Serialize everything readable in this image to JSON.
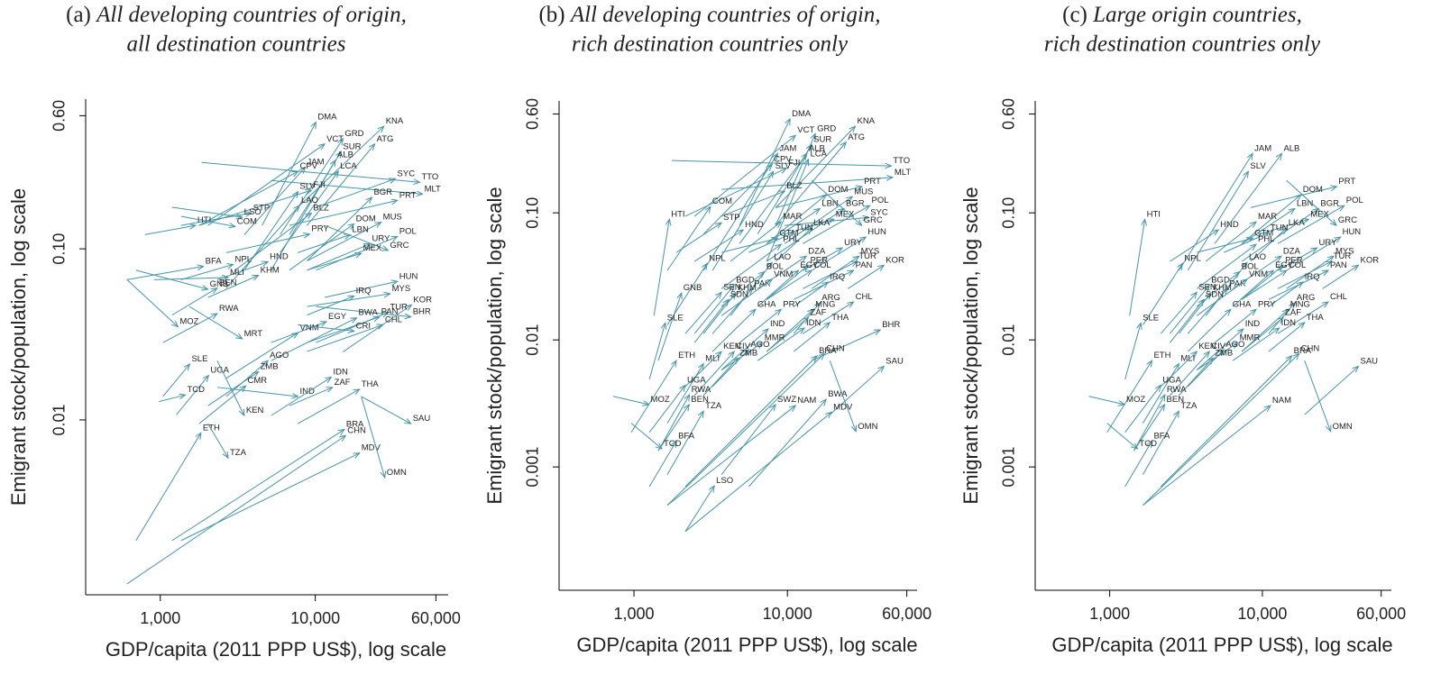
{
  "chart_data": [
    {
      "type": "arrow",
      "panel": "(a)",
      "title": [
        "All developing countries of origin,",
        "all destination countries"
      ],
      "x_label": "GDP/capita (2011 PPP US$), log scale",
      "y_label": "Emigrant stock/population, log scale",
      "xscale": "log",
      "yscale": "log",
      "color": "#4596a8",
      "xlim": [
        330,
        72000
      ],
      "ylim": [
        0.00095,
        0.75
      ],
      "xticks": [
        {
          "value": 1000,
          "label": "1,000"
        },
        {
          "value": 10000,
          "label": "10,000"
        },
        {
          "value": 60000,
          "label": "60,000"
        }
      ],
      "yticks": [
        0.01,
        {
          "value": 0.1,
          "label": "0.10"
        },
        {
          "value": 0.6,
          "label": "0.60"
        }
      ],
      "labels": [
        "DMA",
        "VCT",
        "GRD",
        "KNA",
        "SUR",
        "ATG",
        "JAM",
        "ALB",
        "CPV",
        "LCA",
        "SYC",
        "TTO",
        "MLT",
        "PRT",
        "BGR",
        "SLV",
        "FJI",
        "LAO",
        "BLZ",
        "STP",
        "LSO",
        "HTI",
        "COM",
        "PRY",
        "DOM",
        "MUS",
        "LBN",
        "POL",
        "URY",
        "GRC",
        "MEX",
        "NPL",
        "BFA",
        "HND",
        "MLI",
        "KHM",
        "GNB",
        "BEN",
        "HUN",
        "MYS",
        "IRQ",
        "KOR",
        "TUR",
        "BHR",
        "PAN",
        "BWA",
        "CHL",
        "EGY",
        "MOZ",
        "RWA",
        "MRT",
        "VNM",
        "CRI",
        "SLE",
        "AGO",
        "ZMB",
        "UGA",
        "CMR",
        "TCD",
        "IND",
        "KEN",
        "THA",
        "IDN",
        "ZAF",
        "SAU",
        "ETH",
        "TZA",
        "BRA",
        "CHN",
        "MDV",
        "OMN"
      ],
      "x_start": [
        4540,
        2030,
        5930,
        7700,
        6800,
        8840,
        3480,
        5190,
        1780,
        5930,
        10100,
        1850,
        5190,
        6800,
        8840,
        3480,
        1780,
        2660,
        3040,
        1360,
        1190,
        795,
        1360,
        2660,
        6800,
        8840,
        7700,
        10100,
        8840,
        11500,
        8840,
        1360,
        610,
        2330,
        912,
        2030,
        697,
        1190,
        11500,
        8840,
        8840,
        15100,
        10100,
        10100,
        8840,
        5190,
        8840,
        5190,
        610,
        1040,
        1540,
        2660,
        7700,
        1040,
        2660,
        2030,
        1270,
        1780,
        980,
        2330,
        2330,
        7700,
        5190,
        6800,
        19800,
        697,
        2030,
        1190,
        610,
        1360,
        19800
      ],
      "y_start": [
        0.137,
        0.137,
        0.121,
        0.175,
        0.121,
        0.137,
        0.121,
        0.075,
        0.137,
        0.095,
        0.175,
        0.32,
        0.251,
        0.137,
        0.085,
        0.075,
        0.137,
        0.059,
        0.075,
        0.137,
        0.175,
        0.121,
        0.155,
        0.095,
        0.075,
        0.085,
        0.095,
        0.075,
        0.075,
        0.137,
        0.075,
        0.066,
        0.066,
        0.066,
        0.066,
        0.052,
        0.075,
        0.041,
        0.052,
        0.046,
        0.041,
        0.025,
        0.0283,
        0.046,
        0.0283,
        0.0222,
        0.0251,
        0.0283,
        0.066,
        0.0283,
        0.046,
        0.0175,
        0.036,
        0.0137,
        0.0137,
        0.0121,
        0.0107,
        0.0095,
        0.0128,
        0.0155,
        0.0222,
        0.0095,
        0.0106,
        0.0121,
        0.0137,
        0.00197,
        0.0095,
        0.00197,
        0.0011,
        0.00197,
        0.0137
      ],
      "x": [
        10100,
        11500,
        15100,
        27700,
        14700,
        24200,
        8620,
        13500,
        7740,
        14100,
        32900,
        47200,
        49200,
        33900,
        23200,
        7740,
        9450,
        7900,
        9450,
        3870,
        3380,
        1690,
        3040,
        9200,
        17800,
        26600,
        16800,
        33900,
        22600,
        29500,
        19800,
        2950,
        1900,
        4950,
        2740,
        4300,
        2030,
        2330,
        33900,
        30400,
        17800,
        41800,
        29500,
        41400,
        25900,
        18500,
        27400,
        11800,
        1300,
        2330,
        3380,
        7740,
        17800,
        1550,
        4950,
        4300,
        2050,
        3560,
        1450,
        7740,
        3480,
        19300,
        12700,
        12900,
        41400,
        1830,
        2740,
        15400,
        15700,
        19300,
        28100
      ],
      "y": [
        0.55,
        0.41,
        0.44,
        0.52,
        0.37,
        0.41,
        0.3,
        0.33,
        0.284,
        0.284,
        0.257,
        0.245,
        0.209,
        0.192,
        0.2,
        0.216,
        0.22,
        0.179,
        0.162,
        0.162,
        0.153,
        0.137,
        0.135,
        0.122,
        0.14,
        0.143,
        0.121,
        0.118,
        0.107,
        0.098,
        0.094,
        0.081,
        0.079,
        0.084,
        0.068,
        0.07,
        0.058,
        0.059,
        0.0645,
        0.0546,
        0.053,
        0.047,
        0.0425,
        0.04,
        0.04,
        0.0395,
        0.036,
        0.0375,
        0.035,
        0.0418,
        0.0298,
        0.0323,
        0.033,
        0.0212,
        0.0222,
        0.0191,
        0.0182,
        0.0158,
        0.014,
        0.0137,
        0.0106,
        0.0151,
        0.0178,
        0.0155,
        0.0095,
        0.0084,
        0.006,
        0.0088,
        0.0081,
        0.0064,
        0.0046
      ]
    },
    {
      "type": "arrow",
      "panel": "(b)",
      "title": [
        "All developing countries of origin,",
        "rich destination countries only"
      ],
      "x_label": "GDP/capita (2011 PPP US$), log scale",
      "y_label": "Emigrant stock/population, log scale",
      "xscale": "log",
      "yscale": "log",
      "color": "#4596a8",
      "xlim": [
        325,
        70000
      ],
      "ylim": [
        0.000107,
        0.76
      ],
      "xticks": [
        {
          "value": 1000,
          "label": "1,000"
        },
        {
          "value": 10000,
          "label": "10,000"
        },
        {
          "value": 60000,
          "label": "60,000"
        }
      ],
      "yticks": [
        0.001,
        0.01,
        {
          "value": 0.1,
          "label": "0.10"
        },
        {
          "value": 0.6,
          "label": "0.60"
        }
      ],
      "labels": [
        "DMA",
        "VCT",
        "GRD",
        "KNA",
        "SUR",
        "ATG",
        "TTO",
        "MLT",
        "JAM",
        "ALB",
        "CPV",
        "LCA",
        "SLV",
        "FJI",
        "BLZ",
        "PRT",
        "DOM",
        "MUS",
        "POL",
        "SYC",
        "COM",
        "HTI",
        "STP",
        "LBN",
        "BGR",
        "MEX",
        "GRC",
        "HND",
        "MAR",
        "LKA",
        "GTM",
        "TUN",
        "HUN",
        "URY",
        "NPL",
        "PHL",
        "DZA",
        "MYS",
        "LAO",
        "PER",
        "TUR",
        "KOR",
        "PAN",
        "GNB",
        "SLE",
        "BGD",
        "BOL",
        "EGY",
        "COL",
        "IRQ",
        "PAK",
        "SEN",
        "VNM",
        "KHM",
        "SDN",
        "GHA",
        "PRY",
        "ARG",
        "CHL",
        "MNG",
        "ZAF",
        "IDN",
        "THA",
        "IND",
        "MMR",
        "BHR",
        "ETH",
        "MLI",
        "KEN",
        "CIV",
        "AGO",
        "ZMB",
        "CHN",
        "BRA",
        "SAU",
        "UGA",
        "RWA",
        "MOZ",
        "BEN",
        "TZA",
        "SWZ",
        "NAM",
        "BWA",
        "MDV",
        "OMN",
        "BFA",
        "TCD",
        "LSO"
      ],
      "x_start": [
        4880,
        2480,
        8390,
        8390,
        6400,
        8390,
        1760,
        3720,
        2840,
        4880,
        2840,
        7330,
        3250,
        2160,
        3720,
        8390,
        7330,
        9600,
        12600,
        9600,
        1650,
        1350,
        1890,
        7330,
        7330,
        9600,
        14400,
        2480,
        4260,
        8390,
        3720,
        5600,
        14400,
        12600,
        1650,
        3720,
        6400,
        14400,
        4260,
        7330,
        12600,
        24800,
        11000,
        1440,
        1260,
        2480,
        3720,
        6400,
        7330,
        11000,
        3250,
        2160,
        3720,
        2840,
        2480,
        3250,
        4880,
        11000,
        12600,
        7330,
        7330,
        6400,
        11000,
        3720,
        3720,
        14400,
        960,
        1650,
        2160,
        2480,
        3250,
        2840,
        1650,
        2160,
        18900,
        1260,
        1440,
        730,
        1440,
        1650,
        3720,
        1650,
        5600,
        2160,
        18900,
        1260,
        960,
        2160
      ],
      "y_start": [
        0.0796,
        0.094,
        0.0796,
        0.11,
        0.068,
        0.0796,
        0.258,
        0.153,
        0.0352,
        0.0573,
        0.068,
        0.0415,
        0.0352,
        0.094,
        0.094,
        0.11,
        0.0573,
        0.0573,
        0.0573,
        0.0796,
        0.0352,
        0.0155,
        0.0488,
        0.0573,
        0.0415,
        0.068,
        0.18,
        0.0415,
        0.0415,
        0.0415,
        0.0488,
        0.0488,
        0.0352,
        0.0352,
        0.0131,
        0.0253,
        0.0253,
        0.0253,
        0.0155,
        0.0208,
        0.0253,
        0.0253,
        0.0208,
        0.00687,
        0.0049,
        0.0112,
        0.0183,
        0.0183,
        0.0208,
        0.0183,
        0.0112,
        0.0112,
        0.0155,
        0.0112,
        0.0095,
        0.0081,
        0.0095,
        0.0112,
        0.0112,
        0.0081,
        0.0081,
        0.00687,
        0.0081,
        0.0058,
        0.0058,
        0.00687,
        0.00187,
        0.00221,
        0.0043,
        0.00365,
        0.0043,
        0.00365,
        0.0005,
        0.0007,
        0.00258,
        0.00187,
        0.00134,
        0.0036,
        0.00134,
        0.00087,
        0.00087,
        0.0005,
        0.0007,
        0.00031,
        0.00687,
        0.0007,
        0.00221,
        0.00031
      ],
      "x": [
        10400,
        11300,
        15200,
        27700,
        14400,
        24100,
        47500,
        48500,
        8640,
        13400,
        7940,
        13700,
        8100,
        9870,
        9600,
        30700,
        17900,
        26500,
        34400,
        33800,
        3150,
        1700,
        3720,
        16300,
        23400,
        20100,
        30500,
        5150,
        9100,
        14400,
        8640,
        11000,
        32500,
        22800,
        3000,
        9100,
        13300,
        29300,
        7940,
        13700,
        28400,
        42600,
        27000,
        2040,
        1600,
        4500,
        7100,
        11800,
        14400,
        18400,
        5900,
        3720,
        7940,
        4600,
        4130,
        6200,
        9100,
        16300,
        27000,
        14800,
        13700,
        12900,
        18900,
        7500,
        6900,
        40300,
        1890,
        2840,
        3720,
        4500,
        5600,
        4750,
        17400,
        15600,
        42600,
        2160,
        2300,
        1250,
        2290,
        2840,
        8370,
        11300,
        17900,
        19400,
        28000,
        1890,
        1520,
        3340
      ],
      "y": [
        0.55,
        0.407,
        0.42,
        0.48,
        0.345,
        0.36,
        0.234,
        0.19,
        0.293,
        0.293,
        0.24,
        0.264,
        0.212,
        0.225,
        0.148,
        0.161,
        0.139,
        0.134,
        0.114,
        0.092,
        0.112,
        0.089,
        0.0836,
        0.108,
        0.108,
        0.089,
        0.0796,
        0.0734,
        0.085,
        0.076,
        0.063,
        0.0697,
        0.0645,
        0.053,
        0.04,
        0.0565,
        0.0456,
        0.0456,
        0.0407,
        0.0387,
        0.0415,
        0.0387,
        0.0352,
        0.0234,
        0.0136,
        0.027,
        0.0344,
        0.0352,
        0.0352,
        0.0285,
        0.0253,
        0.0237,
        0.03,
        0.0234,
        0.0208,
        0.0174,
        0.0174,
        0.0196,
        0.0199,
        0.0174,
        0.015,
        0.0124,
        0.0137,
        0.0122,
        0.0095,
        0.012,
        0.00687,
        0.0065,
        0.0081,
        0.0081,
        0.0084,
        0.0072,
        0.0078,
        0.0075,
        0.0062,
        0.0044,
        0.0037,
        0.0031,
        0.0031,
        0.00275,
        0.0031,
        0.00304,
        0.0034,
        0.0027,
        0.0019,
        0.0016,
        0.00139,
        0.00071
      ]
    },
    {
      "type": "arrow",
      "panel": "(c)",
      "title": [
        "Large origin countries,",
        "rich destination countries only"
      ],
      "x_label": "GDP/capita (2011 PPP US$), log scale",
      "y_label": "Emigrant stock/population, log scale",
      "xscale": "log",
      "yscale": "log",
      "color": "#4596a8",
      "xlim": [
        325,
        70000
      ],
      "ylim": [
        0.000107,
        0.76
      ],
      "xticks": [
        {
          "value": 1000,
          "label": "1,000"
        },
        {
          "value": 10000,
          "label": "10,000"
        },
        {
          "value": 60000,
          "label": "60,000"
        }
      ],
      "yticks": [
        0.001,
        0.01,
        {
          "value": 0.1,
          "label": "0.10"
        },
        {
          "value": 0.6,
          "label": "0.60"
        }
      ],
      "labels": [
        "JAM",
        "ALB",
        "SLV",
        "PRT",
        "DOM",
        "POL",
        "HTI",
        "LBN",
        "BGR",
        "MEX",
        "GRC",
        "HND",
        "MAR",
        "LKA",
        "GTM",
        "TUN",
        "HUN",
        "URY",
        "NPL",
        "PHL",
        "DZA",
        "MYS",
        "LAO",
        "PER",
        "TUR",
        "KOR",
        "PAN",
        "SLE",
        "BGD",
        "BOL",
        "EGY",
        "COL",
        "IRQ",
        "PAK",
        "SEN",
        "VNM",
        "KHM",
        "SDN",
        "GHA",
        "PRY",
        "ARG",
        "CHL",
        "MNG",
        "ZAF",
        "IDN",
        "THA",
        "IND",
        "MMR",
        "ETH",
        "MLI",
        "KEN",
        "CIV",
        "AGO",
        "ZMB",
        "CHN",
        "BRA",
        "SAU",
        "UGA",
        "RWA",
        "MOZ",
        "BEN",
        "TZA",
        "NAM",
        "OMN",
        "BFA",
        "TCD"
      ],
      "x_start": [
        2840,
        4880,
        3250,
        8390,
        7330,
        12600,
        1350,
        7330,
        7330,
        9600,
        14400,
        2480,
        4260,
        8390,
        3720,
        5600,
        14400,
        12600,
        1650,
        3720,
        6400,
        14400,
        4260,
        7330,
        12600,
        24800,
        11000,
        1260,
        2480,
        3720,
        6400,
        7330,
        11000,
        3250,
        2160,
        3720,
        2840,
        2480,
        3250,
        4880,
        11000,
        12600,
        7330,
        7330,
        6400,
        11000,
        3720,
        3720,
        960,
        1650,
        2160,
        2480,
        3250,
        2840,
        1650,
        2160,
        18900,
        1260,
        1440,
        730,
        1440,
        1650,
        1650,
        18900,
        1260,
        960
      ],
      "y_start": [
        0.0352,
        0.0573,
        0.0352,
        0.11,
        0.0573,
        0.0573,
        0.0155,
        0.0573,
        0.0415,
        0.068,
        0.18,
        0.0415,
        0.0415,
        0.0415,
        0.0488,
        0.0488,
        0.0352,
        0.0352,
        0.0131,
        0.0253,
        0.0253,
        0.0253,
        0.0155,
        0.0208,
        0.0253,
        0.0253,
        0.0208,
        0.0049,
        0.0112,
        0.0183,
        0.0183,
        0.0208,
        0.0183,
        0.0112,
        0.0112,
        0.0155,
        0.0112,
        0.0095,
        0.0081,
        0.0095,
        0.0112,
        0.0112,
        0.0081,
        0.0081,
        0.00687,
        0.0081,
        0.0058,
        0.0058,
        0.00187,
        0.00221,
        0.0043,
        0.00365,
        0.0043,
        0.00365,
        0.0005,
        0.0007,
        0.00258,
        0.00187,
        0.00134,
        0.0036,
        0.00134,
        0.00087,
        0.0005,
        0.00687,
        0.0007,
        0.00221
      ],
      "x": [
        8640,
        13400,
        8100,
        30700,
        17900,
        34400,
        1700,
        16300,
        23400,
        20100,
        30500,
        5150,
        9100,
        14400,
        8640,
        11000,
        32500,
        22800,
        3000,
        9100,
        13300,
        29300,
        7940,
        13700,
        28400,
        42600,
        27000,
        1600,
        4500,
        7100,
        11800,
        14400,
        18400,
        5900,
        3720,
        7940,
        4600,
        4130,
        6200,
        9100,
        16300,
        27000,
        14800,
        13700,
        12900,
        18900,
        7500,
        6900,
        1890,
        2840,
        3720,
        4500,
        5600,
        4750,
        17400,
        15600,
        42600,
        2160,
        2300,
        1250,
        2290,
        2840,
        11300,
        28000,
        1890,
        1520
      ],
      "y": [
        0.293,
        0.293,
        0.212,
        0.161,
        0.139,
        0.114,
        0.089,
        0.108,
        0.108,
        0.089,
        0.0796,
        0.0734,
        0.085,
        0.076,
        0.063,
        0.0697,
        0.0645,
        0.053,
        0.04,
        0.0565,
        0.0456,
        0.0456,
        0.0407,
        0.0387,
        0.0415,
        0.0387,
        0.0352,
        0.0136,
        0.027,
        0.0344,
        0.0352,
        0.0352,
        0.0285,
        0.0253,
        0.0237,
        0.03,
        0.0234,
        0.0208,
        0.0174,
        0.0174,
        0.0196,
        0.0199,
        0.0174,
        0.015,
        0.0124,
        0.0137,
        0.0122,
        0.0095,
        0.00687,
        0.0065,
        0.0081,
        0.0081,
        0.0084,
        0.0072,
        0.0078,
        0.0075,
        0.0062,
        0.0044,
        0.0037,
        0.0031,
        0.0031,
        0.00275,
        0.00304,
        0.0019,
        0.0016,
        0.00139
      ]
    }
  ]
}
